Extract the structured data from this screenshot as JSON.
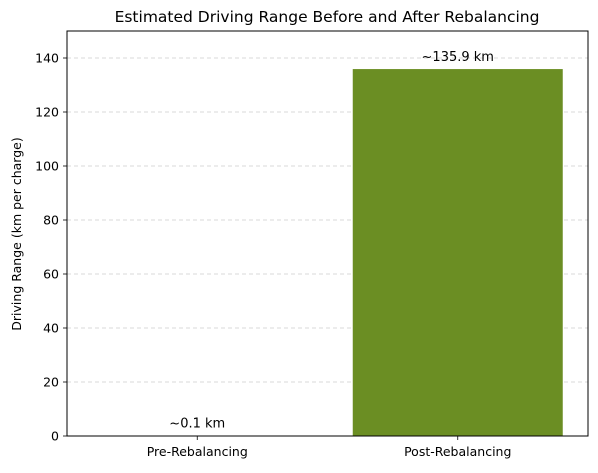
{
  "chart_data": {
    "type": "bar",
    "title": "Estimated Driving Range Before and After Rebalancing",
    "xlabel": "",
    "ylabel": "Driving Range (km per charge)",
    "categories": [
      "Pre-Rebalancing",
      "Post-Rebalancing"
    ],
    "values": [
      0.1,
      135.9
    ],
    "data_labels": [
      "~0.1 km",
      "~135.9 km"
    ],
    "ylim": [
      0,
      150
    ],
    "yticks": [
      0,
      20,
      40,
      60,
      80,
      100,
      120,
      140
    ],
    "bar_color": "#6b8e23",
    "grid": "y-dashed",
    "legend": "none"
  }
}
